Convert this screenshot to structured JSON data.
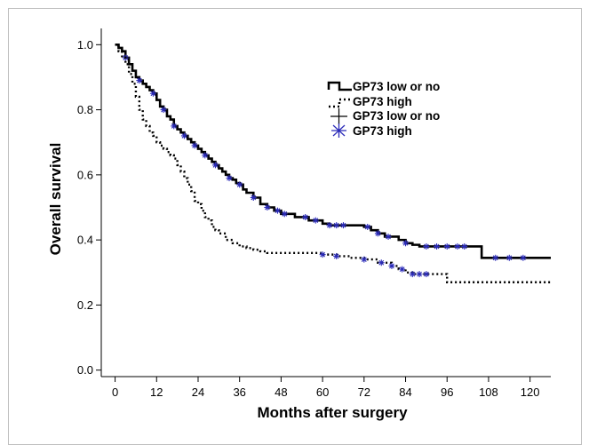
{
  "chart_data": {
    "type": "line",
    "subtype": "kaplan-meier survival curve",
    "title": "",
    "xlabel": "Months after surgery",
    "ylabel": "Overall survival",
    "xlim": [
      -4,
      126
    ],
    "ylim": [
      -0.02,
      1.05
    ],
    "xticks": [
      0,
      12,
      24,
      36,
      48,
      60,
      72,
      84,
      96,
      108,
      120
    ],
    "yticks": [
      0.0,
      0.2,
      0.4,
      0.6,
      0.8,
      1.0
    ],
    "ytick_labels": [
      "0.0",
      "0.2",
      "0.4",
      "0.6",
      "0.8",
      "1.0"
    ],
    "grid": false,
    "legend_position": "upper-right",
    "legend": [
      {
        "label": "GP73 low or no",
        "symbol": "solid-step"
      },
      {
        "label": "GP73 high",
        "symbol": "dotted-step"
      },
      {
        "label": "GP73 low or no",
        "symbol": "plus-censor"
      },
      {
        "label": "GP73 high",
        "symbol": "star-censor"
      }
    ],
    "series": [
      {
        "name": "GP73 low or no",
        "style": "solid",
        "color": "#000000",
        "x": [
          0,
          1,
          2,
          3,
          4,
          5,
          6,
          7,
          8,
          9,
          10,
          11,
          12,
          13,
          14,
          15,
          16,
          17,
          18,
          19,
          20,
          21,
          22,
          23,
          24,
          25,
          26,
          27,
          28,
          29,
          30,
          31,
          32,
          33,
          34,
          35,
          36,
          37,
          38,
          40,
          42,
          44,
          46,
          48,
          52,
          56,
          60,
          62,
          64,
          66,
          72,
          74,
          76,
          78,
          82,
          84,
          86,
          88,
          96,
          100,
          104,
          106,
          108,
          126
        ],
        "y": [
          1.0,
          0.99,
          0.98,
          0.96,
          0.94,
          0.92,
          0.9,
          0.89,
          0.88,
          0.87,
          0.86,
          0.85,
          0.83,
          0.81,
          0.8,
          0.78,
          0.77,
          0.75,
          0.74,
          0.73,
          0.72,
          0.71,
          0.7,
          0.69,
          0.68,
          0.67,
          0.66,
          0.65,
          0.64,
          0.63,
          0.62,
          0.61,
          0.6,
          0.59,
          0.585,
          0.575,
          0.57,
          0.555,
          0.545,
          0.53,
          0.51,
          0.5,
          0.49,
          0.48,
          0.47,
          0.46,
          0.45,
          0.445,
          0.445,
          0.445,
          0.44,
          0.43,
          0.42,
          0.41,
          0.4,
          0.39,
          0.385,
          0.38,
          0.38,
          0.38,
          0.38,
          0.345,
          0.345,
          0.345
        ],
        "censor_marks_x": [
          3,
          7,
          11,
          14,
          17,
          20,
          23,
          26,
          29,
          33,
          36,
          40,
          44,
          47,
          49,
          55,
          58,
          62,
          64,
          66,
          73,
          76,
          79,
          84,
          90,
          93,
          96,
          99,
          101,
          110,
          114,
          118
        ]
      },
      {
        "name": "GP73 high",
        "style": "dotted",
        "color": "#000000",
        "x": [
          0,
          1,
          2,
          3,
          4,
          5,
          6,
          7,
          8,
          9,
          10,
          11,
          12,
          13,
          14,
          15,
          16,
          17,
          18,
          19,
          20,
          21,
          22,
          23,
          24,
          25,
          26,
          27,
          28,
          29,
          30,
          32,
          34,
          36,
          38,
          40,
          42,
          44,
          46,
          48,
          60,
          64,
          68,
          72,
          76,
          80,
          82,
          84,
          86,
          94,
          96,
          126
        ],
        "y": [
          1.0,
          0.98,
          0.96,
          0.94,
          0.91,
          0.88,
          0.84,
          0.8,
          0.77,
          0.75,
          0.73,
          0.72,
          0.7,
          0.69,
          0.68,
          0.67,
          0.66,
          0.65,
          0.63,
          0.61,
          0.59,
          0.57,
          0.55,
          0.52,
          0.51,
          0.49,
          0.47,
          0.46,
          0.44,
          0.43,
          0.42,
          0.4,
          0.39,
          0.38,
          0.375,
          0.37,
          0.365,
          0.36,
          0.36,
          0.36,
          0.355,
          0.35,
          0.345,
          0.34,
          0.33,
          0.32,
          0.31,
          0.3,
          0.295,
          0.295,
          0.27,
          0.27
        ],
        "censor_marks_x": [
          60,
          64,
          72,
          77,
          80,
          83,
          86,
          88,
          90
        ]
      }
    ]
  }
}
